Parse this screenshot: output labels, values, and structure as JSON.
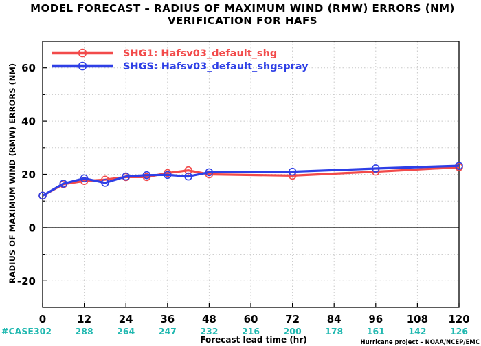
{
  "chart_data": {
    "type": "line",
    "title": "MODEL FORECAST – RADIUS OF MAXIMUM WIND (RMW) ERRORS (NM)",
    "subtitle": "VERIFICATION FOR HAFS",
    "xlabel": "Forecast lead time (hr)",
    "ylabel": "RADIUS OF MAXIMUM WIND (RMW) ERRORS (NM)",
    "xlim": [
      0,
      120
    ],
    "ylim": [
      -30,
      70
    ],
    "x_ticks": [
      "0",
      "12",
      "24",
      "36",
      "48",
      "60",
      "72",
      "84",
      "96",
      "108",
      "120"
    ],
    "y_ticks": [
      "60",
      "40",
      "20",
      "0",
      "-20"
    ],
    "grid": true,
    "legend": "top-left",
    "series": [
      {
        "name": "SHG1: Hafsv03_default_shg",
        "color": "#f24a4a",
        "x": [
          0,
          6,
          12,
          18,
          24,
          30,
          36,
          42,
          48,
          72,
          96,
          120
        ],
        "y": [
          12,
          16.3,
          17.5,
          18,
          19,
          19,
          20.5,
          21.5,
          20,
          19.5,
          21,
          22.7
        ]
      },
      {
        "name": "SHGS: Hafsv03_default_shgspray",
        "color": "#2e3fe6",
        "x": [
          0,
          6,
          12,
          18,
          24,
          30,
          36,
          42,
          48,
          72,
          96,
          120
        ],
        "y": [
          12,
          16.5,
          18.5,
          16.8,
          19.2,
          19.7,
          19.8,
          19.2,
          20.8,
          21,
          22.2,
          23.2
        ]
      }
    ],
    "case_label": "#CASE",
    "case_counts": [
      "302",
      "288",
      "264",
      "247",
      "232",
      "216",
      "200",
      "178",
      "161",
      "142",
      "126"
    ]
  },
  "footer": {
    "credit": "Hurricane project – NOAA/NCEP/EMC"
  },
  "colors": {
    "case_counts": "#20b8b0",
    "grid": "#c8c8c8"
  }
}
